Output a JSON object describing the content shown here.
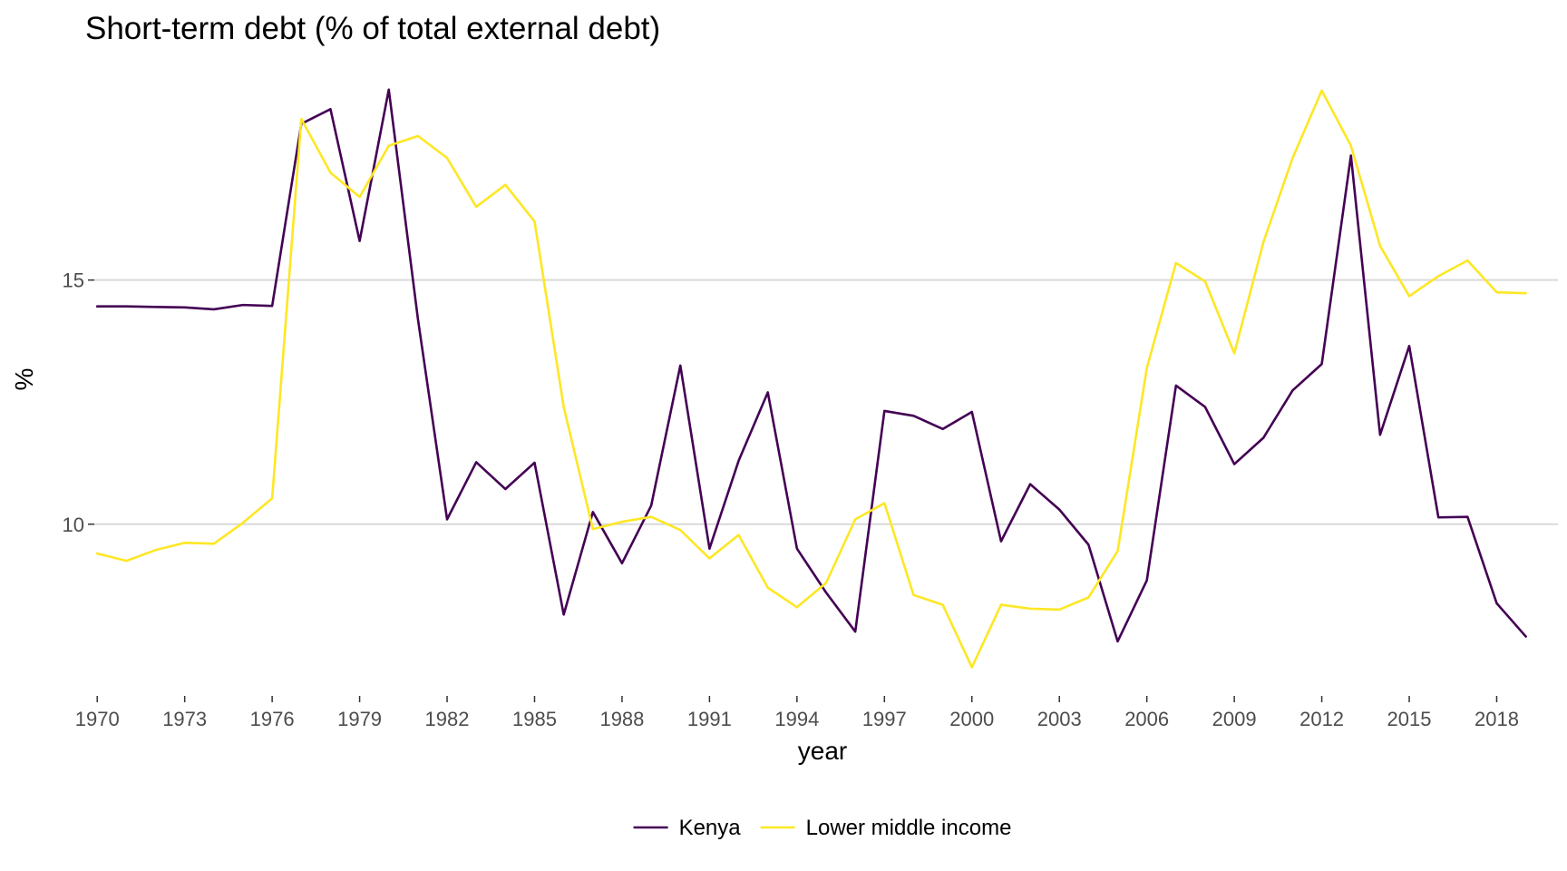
{
  "chart_data": {
    "type": "line",
    "title": "Short-term debt (% of total external debt)",
    "xlabel": "year",
    "ylabel": "%",
    "x": [
      1970,
      1971,
      1972,
      1973,
      1974,
      1975,
      1976,
      1977,
      1978,
      1979,
      1980,
      1981,
      1982,
      1983,
      1984,
      1985,
      1986,
      1987,
      1988,
      1989,
      1990,
      1991,
      1992,
      1993,
      1994,
      1995,
      1996,
      1997,
      1998,
      1999,
      2000,
      2001,
      2002,
      2003,
      2004,
      2005,
      2006,
      2007,
      2008,
      2009,
      2010,
      2011,
      2012,
      2013,
      2014,
      2015,
      2016,
      2017,
      2018,
      2019
    ],
    "xticks": [
      1970,
      1973,
      1976,
      1979,
      1982,
      1985,
      1988,
      1991,
      1994,
      1997,
      2000,
      2003,
      2006,
      2009,
      2012,
      2015,
      2018
    ],
    "xtick_labels": [
      "1970",
      "1973",
      "1976",
      "1979",
      "1982",
      "1985",
      "1988",
      "1991",
      "1994",
      "1997",
      "2000",
      "2003",
      "2006",
      "2009",
      "2012",
      "2015",
      "2018"
    ],
    "xlim": [
      1969.9,
      2020.1
    ],
    "yticks": [
      10,
      15
    ],
    "ytick_labels": [
      "10",
      "15"
    ],
    "ylim": [
      6.8,
      19.1
    ],
    "grid": true,
    "legend_position": "bottom",
    "series": [
      {
        "name": "Kenya",
        "color": "#440154",
        "values": [
          14.46,
          14.46,
          14.45,
          14.44,
          14.4,
          14.49,
          14.47,
          18.2,
          18.5,
          15.8,
          18.9,
          14.2,
          10.1,
          11.27,
          10.72,
          11.26,
          8.15,
          10.25,
          9.2,
          10.38,
          13.25,
          9.5,
          11.3,
          12.7,
          9.5,
          8.6,
          7.8,
          12.32,
          12.22,
          11.95,
          12.3,
          9.65,
          10.82,
          10.3,
          9.58,
          7.6,
          8.85,
          12.84,
          12.4,
          11.23,
          11.77,
          12.74,
          13.28,
          17.55,
          11.83,
          13.65,
          10.14,
          10.15,
          8.38,
          7.7
        ]
      },
      {
        "name": "Lower middle income",
        "color": "#FDE725",
        "values": [
          9.4,
          9.25,
          9.47,
          9.62,
          9.6,
          10.03,
          10.53,
          18.3,
          17.2,
          16.7,
          17.75,
          17.95,
          17.5,
          16.5,
          16.95,
          16.2,
          12.4,
          9.9,
          10.05,
          10.15,
          9.88,
          9.3,
          9.78,
          8.7,
          8.3,
          8.8,
          10.1,
          10.43,
          8.55,
          8.35,
          7.07,
          8.35,
          8.27,
          8.25,
          8.5,
          9.45,
          13.2,
          15.35,
          14.97,
          13.5,
          15.78,
          17.5,
          18.88,
          17.75,
          15.7,
          14.67,
          15.08,
          15.4,
          14.75,
          14.73
        ]
      }
    ]
  }
}
